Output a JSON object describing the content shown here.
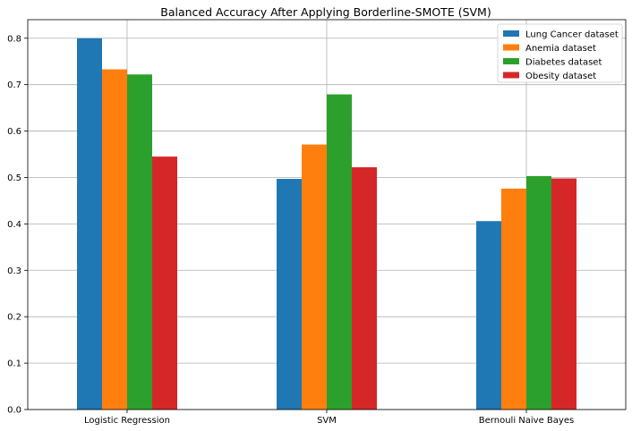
{
  "chart_data": {
    "type": "bar",
    "title": "Balanced Accuracy After Applying Borderline-SMOTE (SVM)",
    "xlabel": "",
    "ylabel": "",
    "categories": [
      "Logistic Regression",
      "SVM",
      "Bernouli Naive Bayes"
    ],
    "series": [
      {
        "name": "Lung Cancer dataset",
        "color": "#1f77b4",
        "values": [
          0.8,
          0.497,
          0.406
        ]
      },
      {
        "name": "Anemia dataset",
        "color": "#ff7f0e",
        "values": [
          0.733,
          0.571,
          0.476
        ]
      },
      {
        "name": "Diabetes dataset",
        "color": "#2ca02c",
        "values": [
          0.722,
          0.679,
          0.503
        ]
      },
      {
        "name": "Obesity dataset",
        "color": "#d62728",
        "values": [
          0.545,
          0.522,
          0.498
        ]
      }
    ],
    "ylim": [
      0,
      0.84
    ],
    "yticks": [
      "0.0",
      "0.1",
      "0.2",
      "0.3",
      "0.4",
      "0.5",
      "0.6",
      "0.7",
      "0.8"
    ],
    "grid": true,
    "legend_position": "top-right"
  }
}
